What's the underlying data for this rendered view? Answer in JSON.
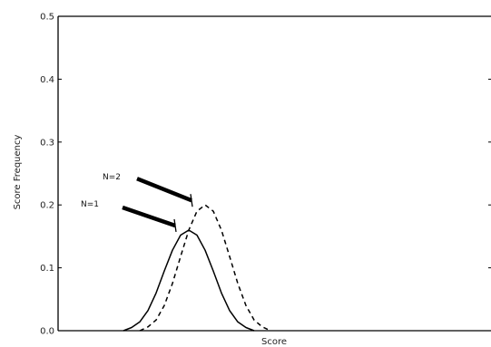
{
  "chart_data": {
    "type": "line",
    "title": "",
    "xlabel": "Score",
    "ylabel": "Score Frequency",
    "ylim": [
      0,
      0.5
    ],
    "yticks": [
      "0.0",
      "0.1",
      "0.2",
      "0.3",
      "0.4",
      "0.5"
    ],
    "xticks": [],
    "grid": false,
    "series": [
      {
        "style": "solid",
        "x": [
          -3.2,
          -2.8,
          -2.4,
          -2.0,
          -1.6,
          -1.2,
          -0.8,
          -0.4,
          0.0,
          0.4,
          0.8,
          1.2,
          1.6,
          2.0,
          2.4,
          2.8,
          3.2
        ],
        "y": [
          0.0,
          0.005,
          0.014,
          0.032,
          0.06,
          0.095,
          0.128,
          0.152,
          0.16,
          0.152,
          0.128,
          0.095,
          0.06,
          0.032,
          0.014,
          0.005,
          0.0
        ]
      },
      {
        "style": "dashed",
        "x": [
          -2.4,
          -2.0,
          -1.6,
          -1.2,
          -0.8,
          -0.4,
          0.0,
          0.4,
          0.8,
          1.2,
          1.6,
          2.0,
          2.4,
          2.8,
          3.2,
          3.6,
          4.0
        ],
        "y": [
          0.0,
          0.006,
          0.017,
          0.04,
          0.075,
          0.118,
          0.16,
          0.19,
          0.2,
          0.19,
          0.16,
          0.118,
          0.075,
          0.04,
          0.017,
          0.006,
          0.0
        ]
      }
    ],
    "annotations": [
      {
        "text": "N=1",
        "points_to": {
          "x": 0.0,
          "y": 0.16
        }
      },
      {
        "text": "N=2",
        "points_to": {
          "x": 0.8,
          "y": 0.2
        }
      }
    ]
  }
}
